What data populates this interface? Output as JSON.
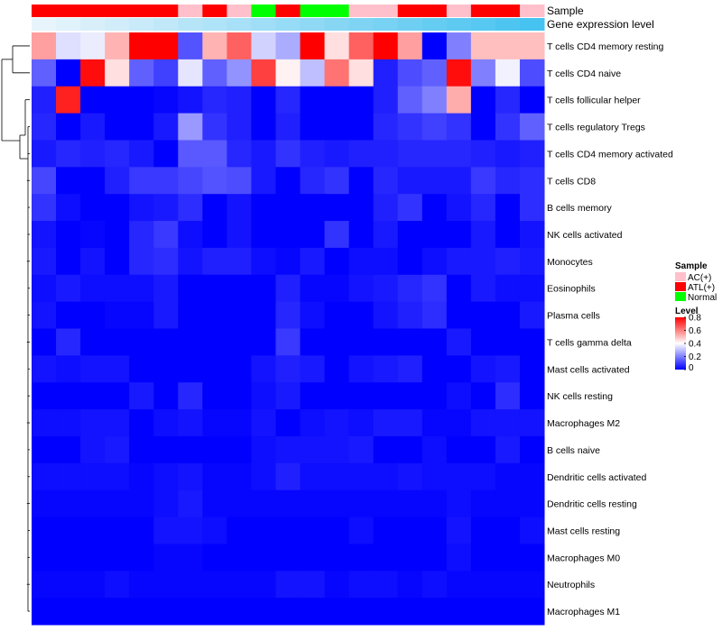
{
  "chart_data": {
    "type": "heatmap",
    "title": "",
    "annotations": {
      "sample_label": "Sample",
      "gene_label": "Gene expression level",
      "sample_groups": [
        "ATL(+)",
        "ATL(+)",
        "ATL(+)",
        "ATL(+)",
        "ATL(+)",
        "ATL(+)",
        "AC(+)",
        "ATL(+)",
        "AC(+)",
        "Normal",
        "ATL(+)",
        "Normal",
        "Normal",
        "AC(+)",
        "AC(+)",
        "ATL(+)",
        "ATL(+)",
        "AC(+)",
        "ATL(+)",
        "ATL(+)",
        "AC(+)"
      ],
      "gene_expression_level": [
        0.0,
        0.05,
        0.1,
        0.15,
        0.2,
        0.25,
        0.3,
        0.35,
        0.4,
        0.45,
        0.5,
        0.55,
        0.6,
        0.65,
        0.7,
        0.75,
        0.8,
        0.85,
        0.9,
        0.95,
        1.0
      ]
    },
    "rows": [
      "T cells CD4 memory resting",
      "T cells CD4 naive",
      "T cells follicular helper",
      "T cells regulatory  Tregs",
      "T cells CD4 memory activated",
      "T cells CD8",
      "B cells memory",
      "NK cells activated",
      "Monocytes",
      "Eosinophils",
      "Plasma cells",
      "T cells gamma delta",
      "Mast cells activated",
      "NK cells resting",
      "Macrophages M2",
      "B cells naive",
      "Dendritic cells activated",
      "Dendritic cells resting",
      "Mast cells resting",
      "Macrophages M0",
      "Neutrophils",
      "Macrophages M1"
    ],
    "values": [
      [
        0.55,
        0.35,
        0.37,
        0.52,
        0.8,
        0.8,
        0.13,
        0.52,
        0.65,
        0.33,
        0.27,
        0.8,
        0.45,
        0.65,
        0.8,
        0.55,
        0.0,
        0.2,
        0.5,
        0.5,
        0.5
      ],
      [
        0.15,
        0.0,
        0.78,
        0.45,
        0.15,
        0.1,
        0.36,
        0.15,
        0.23,
        0.7,
        0.42,
        0.3,
        0.62,
        0.45,
        0.05,
        0.12,
        0.15,
        0.78,
        0.2,
        0.38,
        0.12
      ],
      [
        0.05,
        0.75,
        0.0,
        0.0,
        0.0,
        0.01,
        0.03,
        0.06,
        0.05,
        0.0,
        0.06,
        0.0,
        0.0,
        0.0,
        0.05,
        0.15,
        0.2,
        0.53,
        0.0,
        0.06,
        0.0
      ],
      [
        0.06,
        0.0,
        0.04,
        0.0,
        0.0,
        0.04,
        0.24,
        0.08,
        0.05,
        0.0,
        0.05,
        0.0,
        0.0,
        0.0,
        0.06,
        0.08,
        0.1,
        0.08,
        0.0,
        0.08,
        0.15
      ],
      [
        0.04,
        0.06,
        0.05,
        0.06,
        0.04,
        0.0,
        0.14,
        0.14,
        0.06,
        0.04,
        0.08,
        0.05,
        0.04,
        0.05,
        0.05,
        0.06,
        0.06,
        0.06,
        0.05,
        0.04,
        0.05
      ],
      [
        0.11,
        0.0,
        0.0,
        0.05,
        0.09,
        0.09,
        0.11,
        0.13,
        0.12,
        0.04,
        0.0,
        0.06,
        0.08,
        0.0,
        0.06,
        0.04,
        0.04,
        0.04,
        0.09,
        0.06,
        0.07
      ],
      [
        0.08,
        0.02,
        0.0,
        0.0,
        0.03,
        0.04,
        0.07,
        0.0,
        0.03,
        0.0,
        0.0,
        0.0,
        0.0,
        0.0,
        0.05,
        0.08,
        0.0,
        0.03,
        0.06,
        0.0,
        0.07
      ],
      [
        0.03,
        0.0,
        0.01,
        0.0,
        0.06,
        0.09,
        0.02,
        0.0,
        0.03,
        0.0,
        0.0,
        0.0,
        0.08,
        0.0,
        0.04,
        0.0,
        0.0,
        0.0,
        0.04,
        0.0,
        0.03
      ],
      [
        0.04,
        0.0,
        0.03,
        0.0,
        0.06,
        0.07,
        0.03,
        0.05,
        0.05,
        0.02,
        0.01,
        0.04,
        0.0,
        0.02,
        0.02,
        0.0,
        0.02,
        0.04,
        0.04,
        0.05,
        0.04
      ],
      [
        0.02,
        0.04,
        0.02,
        0.02,
        0.02,
        0.04,
        0.0,
        0.0,
        0.0,
        0.0,
        0.05,
        0.01,
        0.01,
        0.03,
        0.04,
        0.06,
        0.08,
        0.0,
        0.04,
        0.02,
        0.02
      ],
      [
        0.03,
        0.0,
        0.0,
        0.01,
        0.01,
        0.04,
        0.0,
        0.0,
        0.0,
        0.0,
        0.06,
        0.02,
        0.0,
        0.0,
        0.03,
        0.05,
        0.07,
        0.0,
        0.0,
        0.0,
        0.04
      ],
      [
        0.0,
        0.06,
        0.0,
        0.0,
        0.0,
        0.0,
        0.0,
        0.0,
        0.0,
        0.0,
        0.09,
        0.0,
        0.0,
        0.0,
        0.0,
        0.0,
        0.0,
        0.04,
        0.0,
        0.0,
        0.0
      ],
      [
        0.03,
        0.02,
        0.03,
        0.03,
        0.0,
        0.0,
        0.0,
        0.0,
        0.0,
        0.03,
        0.05,
        0.04,
        0.0,
        0.03,
        0.04,
        0.05,
        0.0,
        0.0,
        0.03,
        0.04,
        0.0
      ],
      [
        0.0,
        0.0,
        0.0,
        0.0,
        0.04,
        0.0,
        0.06,
        0.0,
        0.0,
        0.02,
        0.04,
        0.0,
        0.0,
        0.0,
        0.0,
        0.0,
        0.0,
        0.02,
        0.0,
        0.07,
        0.0
      ],
      [
        0.02,
        0.02,
        0.03,
        0.03,
        0.0,
        0.02,
        0.03,
        0.01,
        0.01,
        0.03,
        0.0,
        0.02,
        0.03,
        0.02,
        0.04,
        0.04,
        0.01,
        0.01,
        0.03,
        0.03,
        0.03
      ],
      [
        0.0,
        0.0,
        0.03,
        0.04,
        0.0,
        0.0,
        0.0,
        0.0,
        0.0,
        0.02,
        0.03,
        0.03,
        0.03,
        0.04,
        0.0,
        0.0,
        0.02,
        0.0,
        0.0,
        0.04,
        0.0
      ],
      [
        0.02,
        0.02,
        0.02,
        0.02,
        0.01,
        0.02,
        0.03,
        0.01,
        0.01,
        0.02,
        0.05,
        0.02,
        0.02,
        0.02,
        0.02,
        0.03,
        0.02,
        0.02,
        0.02,
        0.01,
        0.01
      ],
      [
        0.01,
        0.01,
        0.01,
        0.01,
        0.01,
        0.02,
        0.04,
        0.01,
        0.01,
        0.01,
        0.01,
        0.01,
        0.01,
        0.01,
        0.01,
        0.01,
        0.01,
        0.02,
        0.01,
        0.01,
        0.01
      ],
      [
        0.0,
        0.0,
        0.0,
        0.0,
        0.0,
        0.03,
        0.03,
        0.02,
        0.0,
        0.0,
        0.0,
        0.0,
        0.0,
        0.02,
        0.0,
        0.0,
        0.0,
        0.03,
        0.0,
        0.0,
        0.02
      ],
      [
        0.0,
        0.0,
        0.0,
        0.0,
        0.0,
        0.01,
        0.01,
        0.0,
        0.0,
        0.0,
        0.0,
        0.0,
        0.0,
        0.0,
        0.0,
        0.0,
        0.0,
        0.02,
        0.0,
        0.0,
        0.0
      ],
      [
        0.01,
        0.01,
        0.01,
        0.02,
        0.01,
        0.01,
        0.01,
        0.01,
        0.01,
        0.01,
        0.03,
        0.03,
        0.01,
        0.02,
        0.02,
        0.01,
        0.02,
        0.01,
        0.01,
        0.01,
        0.01
      ],
      [
        0.0,
        0.0,
        0.0,
        0.0,
        0.0,
        0.0,
        0.0,
        0.0,
        0.0,
        0.0,
        0.0,
        0.0,
        0.0,
        0.0,
        0.0,
        0.0,
        0.0,
        0.0,
        0.0,
        0.0,
        0.0
      ]
    ],
    "dendrogram_top_order": [
      "T cells CD4 memory resting",
      "T cells CD4 naive"
    ],
    "legend": {
      "sample_title": "Sample",
      "sample_entries": [
        {
          "label": "AC(+)",
          "color": "#ffc0cb"
        },
        {
          "label": "ATL(+)",
          "color": "#ff0000"
        },
        {
          "label": "Normal",
          "color": "#00ff00"
        }
      ],
      "level_title": "Level",
      "level_ticks": [
        "0.8",
        "0.6",
        "0.4",
        "0.2",
        "0"
      ],
      "level_tick_values": [
        0.8,
        0.6,
        0.4,
        0.2,
        0.0
      ]
    },
    "color_scale": {
      "low": "#0000ff",
      "mid": "#ffffff",
      "high": "#ff0000",
      "min": 0,
      "mid_value": 0.4,
      "max": 0.8,
      "gene_low": "#e8f4fb",
      "gene_high": "#46c3f0"
    }
  }
}
